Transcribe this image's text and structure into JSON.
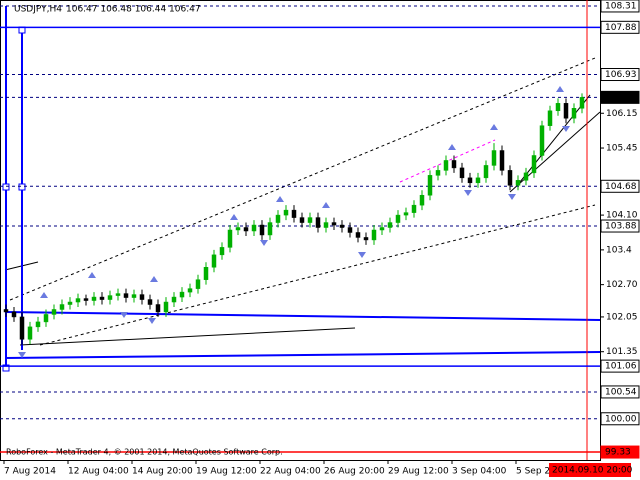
{
  "chart_data": {
    "type": "candlestick",
    "title": "USDJPY,H4",
    "quote": "106.47 106.48 106.44 106.47",
    "footer": "RoboForex - MetaTrader 4, © 2001 2014, MetaQuotes Software Corp.",
    "up_color": "#00b000",
    "down_color": "#000000",
    "ylim": [
      99.17,
      108.43
    ],
    "yticks": [
      106.15,
      105.45,
      {
        "value": 104.1,
        "label": "104.10"
      },
      103.4,
      {
        "value": 102.7,
        "label": "102.70"
      },
      102.05,
      101.35
    ],
    "levels": [
      {
        "value": 108.31,
        "label": "108.31",
        "color": "#000080",
        "dash": true,
        "box": "#ffffff"
      },
      {
        "value": 107.88,
        "label": "107.88",
        "color": "#0000ff",
        "dash": false,
        "box": "#ffffff"
      },
      {
        "value": 106.93,
        "label": "106.93",
        "color": "#000080",
        "dash": true,
        "box": "#ffffff"
      },
      {
        "value": 106.47,
        "label": "106.47",
        "color": "#000080",
        "dash": true,
        "box": "#000000"
      },
      {
        "value": 104.68,
        "label": "104.68",
        "color": "#000080",
        "dash": true,
        "box": "#ffffff"
      },
      {
        "value": 103.88,
        "label": "103.88",
        "color": "#000080",
        "dash": true,
        "box": "#ffffff"
      },
      {
        "value": 101.06,
        "label": "101.06",
        "color": "#0000ff",
        "dash": false,
        "box": "#ffffff"
      },
      {
        "value": 100.54,
        "label": "100.54",
        "color": "#000080",
        "dash": true,
        "box": "#ffffff"
      },
      {
        "value": 100,
        "label": "100.00",
        "color": "#000080",
        "dash": true,
        "box": "#ffffff"
      },
      {
        "value": 99.33,
        "label": "99.33",
        "color": "#ff0000",
        "dash": false,
        "box": "#ff0000"
      }
    ],
    "x_labels": [
      "7 Aug 2014",
      "12 Aug 04:00",
      "14 Aug 20:00",
      "19 Aug 12:00",
      "22 Aug 04:00",
      "26 Aug 20:00",
      "29 Aug 12:00",
      "3 Sep 04:00",
      "5 Sep 2"
    ],
    "cursor_time": "2014.09.10 20:00",
    "open": [
      102.2,
      102.15,
      102.05,
      101.6,
      101.85,
      101.95,
      102.1,
      102.2,
      102.3,
      102.35,
      102.42,
      102.38,
      102.45,
      102.4,
      102.48,
      102.52,
      102.44,
      102.5,
      102.4,
      102.3,
      102.15,
      102.35,
      102.45,
      102.55,
      102.62,
      102.8,
      103.05,
      103.3,
      103.45,
      103.8,
      103.85,
      103.78,
      103.9,
      103.7,
      103.95,
      104.1,
      104.2,
      104.05,
      103.95,
      104.05,
      103.85,
      103.95,
      103.9,
      103.85,
      103.75,
      103.65,
      103.6,
      103.8,
      103.85,
      103.95,
      104.1,
      104.15,
      104.3,
      104.5,
      104.9,
      105.0,
      105.2,
      105.05,
      104.85,
      104.75,
      104.85,
      105.1,
      105.4,
      105.0,
      104.7,
      104.8,
      104.95,
      105.3,
      105.9,
      106.2,
      106.35,
      106.05,
      106.25
    ],
    "high": [
      102.3,
      102.25,
      102.15,
      101.95,
      102.05,
      102.2,
      102.3,
      102.4,
      102.45,
      102.52,
      102.5,
      102.55,
      102.55,
      102.58,
      102.62,
      102.62,
      102.6,
      102.6,
      102.5,
      102.4,
      102.45,
      102.55,
      102.65,
      102.72,
      102.9,
      103.15,
      103.4,
      103.55,
      103.9,
      103.95,
      103.95,
      104.0,
      104.0,
      104.05,
      104.2,
      104.3,
      104.3,
      104.15,
      104.15,
      104.15,
      104.05,
      104.05,
      104.0,
      103.95,
      103.85,
      103.75,
      103.9,
      103.95,
      104.05,
      104.2,
      104.25,
      104.4,
      104.6,
      105.0,
      105.1,
      105.3,
      105.3,
      105.15,
      104.95,
      104.95,
      105.2,
      105.55,
      105.5,
      105.1,
      104.9,
      105.05,
      105.4,
      106.0,
      106.3,
      106.45,
      106.45,
      106.35,
      106.55
    ],
    "low": [
      102.05,
      101.95,
      101.48,
      101.5,
      101.75,
      101.85,
      102.0,
      102.1,
      102.2,
      102.25,
      102.28,
      102.28,
      102.3,
      102.3,
      102.38,
      102.34,
      102.34,
      102.3,
      102.2,
      102.05,
      102.05,
      102.25,
      102.35,
      102.45,
      102.52,
      102.7,
      102.95,
      103.2,
      103.35,
      103.7,
      103.68,
      103.68,
      103.6,
      103.6,
      103.85,
      104.0,
      103.95,
      103.85,
      103.85,
      103.75,
      103.75,
      103.8,
      103.75,
      103.65,
      103.55,
      103.5,
      103.5,
      103.7,
      103.75,
      103.85,
      104.0,
      104.05,
      104.2,
      104.4,
      104.8,
      104.9,
      104.95,
      104.75,
      104.65,
      104.65,
      104.75,
      105.0,
      104.9,
      104.6,
      104.6,
      104.7,
      104.85,
      105.2,
      105.8,
      106.1,
      105.95,
      105.95,
      106.15
    ],
    "close": [
      102.15,
      102.05,
      101.6,
      101.85,
      101.95,
      102.1,
      102.2,
      102.3,
      102.35,
      102.42,
      102.38,
      102.45,
      102.4,
      102.48,
      102.52,
      102.44,
      102.5,
      102.4,
      102.3,
      102.15,
      102.35,
      102.45,
      102.55,
      102.62,
      102.8,
      103.05,
      103.3,
      103.45,
      103.8,
      103.85,
      103.78,
      103.9,
      103.7,
      103.95,
      104.1,
      104.2,
      104.05,
      103.95,
      104.05,
      103.85,
      103.95,
      103.9,
      103.85,
      103.75,
      103.65,
      103.6,
      103.8,
      103.85,
      103.95,
      104.1,
      104.15,
      104.3,
      104.5,
      104.9,
      105.0,
      105.2,
      105.05,
      104.85,
      104.75,
      104.85,
      105.1,
      105.4,
      105.0,
      104.7,
      104.8,
      104.95,
      105.3,
      105.9,
      106.2,
      106.35,
      106.05,
      106.25,
      106.47
    ]
  }
}
